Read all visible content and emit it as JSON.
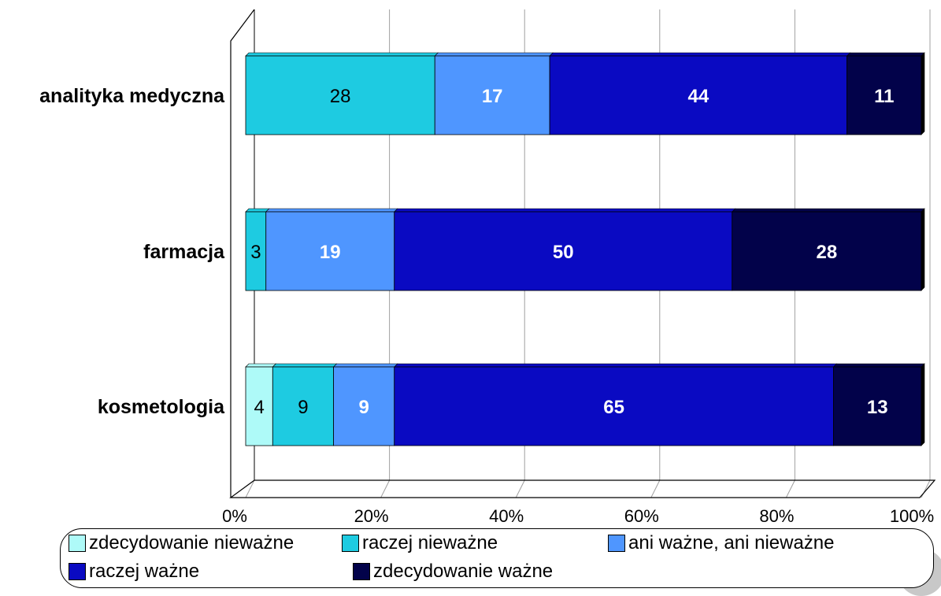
{
  "chart_data": {
    "type": "bar",
    "orientation": "horizontal",
    "stacked": true,
    "percent_scale": true,
    "categories": [
      "analityka medyczna",
      "farmacja",
      "kosmetologia"
    ],
    "series": [
      {
        "name": "zdecydowanie nieważne",
        "color": "#aefaf8",
        "label_color": "#000000",
        "values": [
          null,
          null,
          4
        ]
      },
      {
        "name": "raczej nieważne",
        "color": "#1ecbe1",
        "label_color": "#000000",
        "values": [
          28,
          3,
          9
        ]
      },
      {
        "name": "ani ważne, ani nieważne",
        "color": "#4f96ff",
        "label_color": "#ffffff",
        "values": [
          17,
          19,
          9
        ]
      },
      {
        "name": "raczej ważne",
        "color": "#0a0ac2",
        "label_color": "#ffffff",
        "values": [
          44,
          50,
          65
        ]
      },
      {
        "name": "zdecydowanie ważne",
        "color": "#02024a",
        "label_color": "#ffffff",
        "values": [
          11,
          28,
          13
        ]
      }
    ],
    "x_ticks": [
      "0%",
      "20%",
      "40%",
      "60%",
      "80%",
      "100%"
    ],
    "xlim": [
      0,
      100
    ],
    "grid": true,
    "legend_position": "bottom"
  }
}
